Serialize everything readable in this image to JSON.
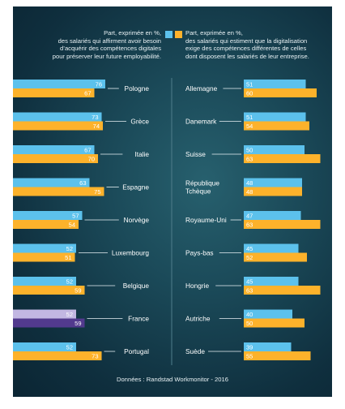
{
  "legend": {
    "left": [
      "Part, exprimée en %,",
      "des salariés qui affirment avoir besoin",
      "d’acquérir des compétences digitales",
      "pour préserver leur future employabilité."
    ],
    "right": [
      "Part, exprimée en %,",
      "des salariés qui estiment que la digitalisation",
      "exige des compétences différentes de celles",
      "dont disposent les salariés de leur entreprise."
    ]
  },
  "source": "Données : Randstad Workmonitor - 2016",
  "colors": {
    "blue": "#5cc1ec",
    "orange": "#fdb22b",
    "france_blue": "#c2b7e2",
    "france_orange": "#523a8e",
    "connector": "#e8f1f4",
    "divider": "#4f7d8b"
  },
  "chart_data": {
    "type": "bar",
    "orientation": "horizontal",
    "series_order": [
      "blue",
      "orange"
    ],
    "left": [
      {
        "country": "Pologne",
        "blue": 76,
        "orange": 67
      },
      {
        "country": "Grèce",
        "blue": 73,
        "orange": 74
      },
      {
        "country": "Italie",
        "blue": 67,
        "orange": 70
      },
      {
        "country": "Espagne",
        "blue": 63,
        "orange": 75
      },
      {
        "country": "Norvège",
        "blue": 57,
        "orange": 54
      },
      {
        "country": "Luxembourg",
        "blue": 52,
        "orange": 51
      },
      {
        "country": "Belgique",
        "blue": 52,
        "orange": 59
      },
      {
        "country": "France",
        "blue": 52,
        "orange": 59,
        "highlight": true
      },
      {
        "country": "Portugal",
        "blue": 52,
        "orange": 73
      }
    ],
    "right": [
      {
        "country": "Allemagne",
        "blue": 51,
        "orange": 60
      },
      {
        "country": "Danemark",
        "blue": 51,
        "orange": 54
      },
      {
        "country": "Suisse",
        "blue": 50,
        "orange": 63
      },
      {
        "country": "République\nTchèque",
        "blue": 48,
        "orange": 48
      },
      {
        "country": "Royaume-Uni",
        "blue": 47,
        "orange": 63
      },
      {
        "country": "Pays-bas",
        "blue": 45,
        "orange": 52
      },
      {
        "country": "Hongrie",
        "blue": 45,
        "orange": 63
      },
      {
        "country": "Autriche",
        "blue": 40,
        "orange": 50
      },
      {
        "country": "Suède",
        "blue": 39,
        "orange": 55
      }
    ]
  }
}
